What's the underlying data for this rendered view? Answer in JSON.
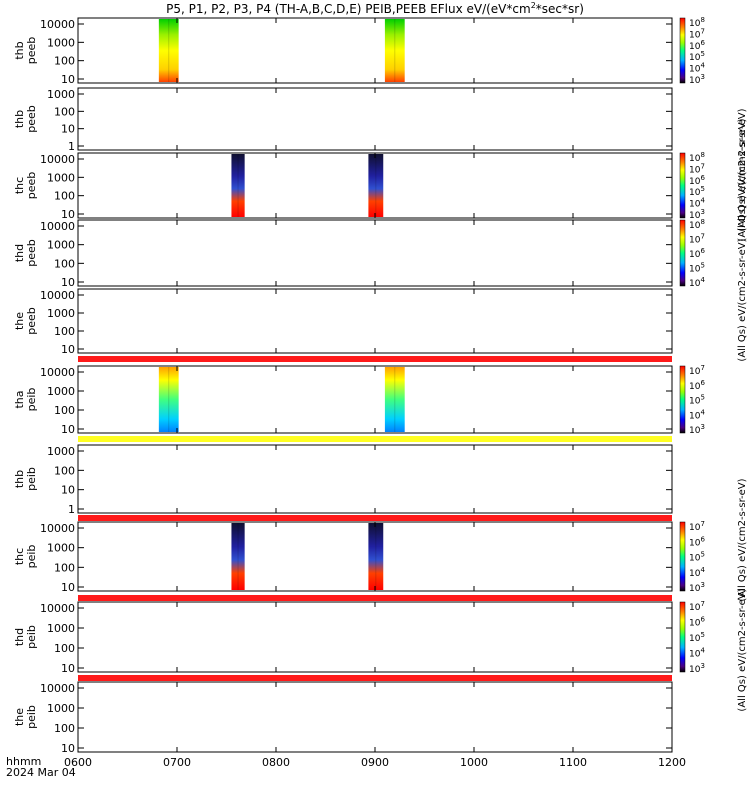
{
  "figure": {
    "title_main": "P5, P1, P2, P3, P4 (TH-A,B,C,D,E) PEIB,PEEB EFlux eV/(eV*cm",
    "title_sup1": "2",
    "title_mid": "*sec*sr)",
    "footer_row1": "hhmm",
    "footer_row2": "2024 Mar 04"
  },
  "chart_data": {
    "type": "heatmap",
    "x_unit": "hhmm",
    "x_range": [
      "0600",
      "1200"
    ],
    "x_ticks": [
      "0600",
      "0700",
      "0800",
      "0900",
      "1000",
      "1100",
      "1200"
    ],
    "colorbar_labels": [
      "(All Qs) eV/(cm2-s-sr-eV)",
      "(All Qs) eV/(cm2-s-sr-eV)",
      "(All Qs) eV/(cm2-s-sr-eV)",
      "(All Qs) eV/(cm2-s-sr-eV)",
      "(All Qs) eV/(cm2-s-sr-eV)"
    ],
    "panels": [
      {
        "name": "thb peeb",
        "probe": "thb",
        "product": "peeb",
        "yticks": [
          "10000",
          "1000",
          "100",
          "10"
        ],
        "scale": "log",
        "colorbar": {
          "ticks": [
            "10^8",
            "10^7",
            "10^6",
            "10^5",
            "10^4",
            "10^3"
          ]
        },
        "bands": [
          {
            "start": "0649",
            "end": "0701",
            "value": "high"
          },
          {
            "start": "0906",
            "end": "0918",
            "value": "high"
          }
        ]
      },
      {
        "name": "thb peeb",
        "probe": "thb",
        "product": "peeb",
        "yticks": [
          "1000",
          "100",
          "10",
          "1"
        ],
        "scale": "log",
        "colorbar": null,
        "bands": []
      },
      {
        "name": "thc peeb",
        "probe": "thc",
        "product": "peeb",
        "yticks": [
          "10000",
          "1000",
          "100",
          "10"
        ],
        "scale": "log",
        "colorbar": {
          "ticks": [
            "10^8",
            "10^7",
            "10^6",
            "10^5",
            "10^4",
            "10^3"
          ]
        },
        "bands": [
          {
            "start": "0733",
            "end": "0741",
            "value": "mixed"
          },
          {
            "start": "0856",
            "end": "0905",
            "value": "mixed"
          }
        ]
      },
      {
        "name": "thd peeb",
        "probe": "thd",
        "product": "peeb",
        "yticks": [
          "10000",
          "1000",
          "100",
          "10"
        ],
        "scale": "log",
        "colorbar": {
          "ticks": [
            "10^8",
            "10^7",
            "10^6",
            "10^5",
            "10^4"
          ]
        },
        "bands": []
      },
      {
        "name": "the peeb",
        "probe": "the",
        "product": "peeb",
        "yticks": [
          "10000",
          "1000",
          "100",
          "10"
        ],
        "scale": "log",
        "colorbar": null,
        "bands": []
      },
      {
        "name": "tha peib",
        "probe": "tha",
        "product": "peib",
        "yticks": [
          "10000",
          "1000",
          "100",
          "10"
        ],
        "scale": "log",
        "colorbar": {
          "ticks": [
            "10^7",
            "10^6",
            "10^5",
            "10^4",
            "10^3"
          ]
        },
        "bands": [
          {
            "start": "0649",
            "end": "0701",
            "value": "medium"
          },
          {
            "start": "0906",
            "end": "0918",
            "value": "medium"
          }
        ]
      },
      {
        "name": "thb peib",
        "probe": "thb",
        "product": "peib",
        "yticks": [
          "1000",
          "100",
          "10",
          "1"
        ],
        "scale": "log",
        "colorbar": null,
        "bands": []
      },
      {
        "name": "thc peib",
        "probe": "thc",
        "product": "peib",
        "yticks": [
          "10000",
          "1000",
          "100",
          "10"
        ],
        "scale": "log",
        "colorbar": {
          "ticks": [
            "10^7",
            "10^6",
            "10^5",
            "10^4",
            "10^3"
          ]
        },
        "bands": [
          {
            "start": "0733",
            "end": "0741",
            "value": "mixed"
          },
          {
            "start": "0856",
            "end": "0905",
            "value": "mixed"
          }
        ]
      },
      {
        "name": "thd peib",
        "probe": "thd",
        "product": "peib",
        "yticks": [
          "10000",
          "1000",
          "100",
          "10"
        ],
        "scale": "log",
        "colorbar": {
          "ticks": [
            "10^7",
            "10^6",
            "10^5",
            "10^4",
            "10^3"
          ]
        },
        "bands": []
      },
      {
        "name": "the peib",
        "probe": "the",
        "product": "peib",
        "yticks": [
          "10000",
          "1000",
          "100",
          "10"
        ],
        "scale": "log",
        "colorbar": null,
        "bands": []
      }
    ],
    "panel_labels": [
      {
        "l1": "thb",
        "l2": "peeb"
      },
      {
        "l1": "thb",
        "l2": "peeb"
      },
      {
        "l1": "thc",
        "l2": "peeb"
      },
      {
        "l1": "thd",
        "l2": "peeb"
      },
      {
        "l1": "the",
        "l2": "peeb"
      },
      {
        "l1": "tha",
        "l2": "peib"
      },
      {
        "l1": "thb",
        "l2": "peib"
      },
      {
        "l1": "thc",
        "l2": "peib"
      },
      {
        "l1": "thd",
        "l2": "peib"
      },
      {
        "l1": "the",
        "l2": "peib"
      }
    ],
    "status_bars": [
      {
        "after_panel": 4,
        "color": "#ff1a1a"
      },
      {
        "after_panel": 5,
        "color": "#ffff22"
      },
      {
        "after_panel": 6,
        "color": "#ff1a1a"
      },
      {
        "after_panel": 7,
        "color": "#ff1a1a"
      },
      {
        "after_panel": 8,
        "color": "#ff1a1a"
      }
    ],
    "colors": {
      "frame": "#000000",
      "status_red": "#ff1a1a",
      "status_yellow": "#ffff22"
    }
  }
}
